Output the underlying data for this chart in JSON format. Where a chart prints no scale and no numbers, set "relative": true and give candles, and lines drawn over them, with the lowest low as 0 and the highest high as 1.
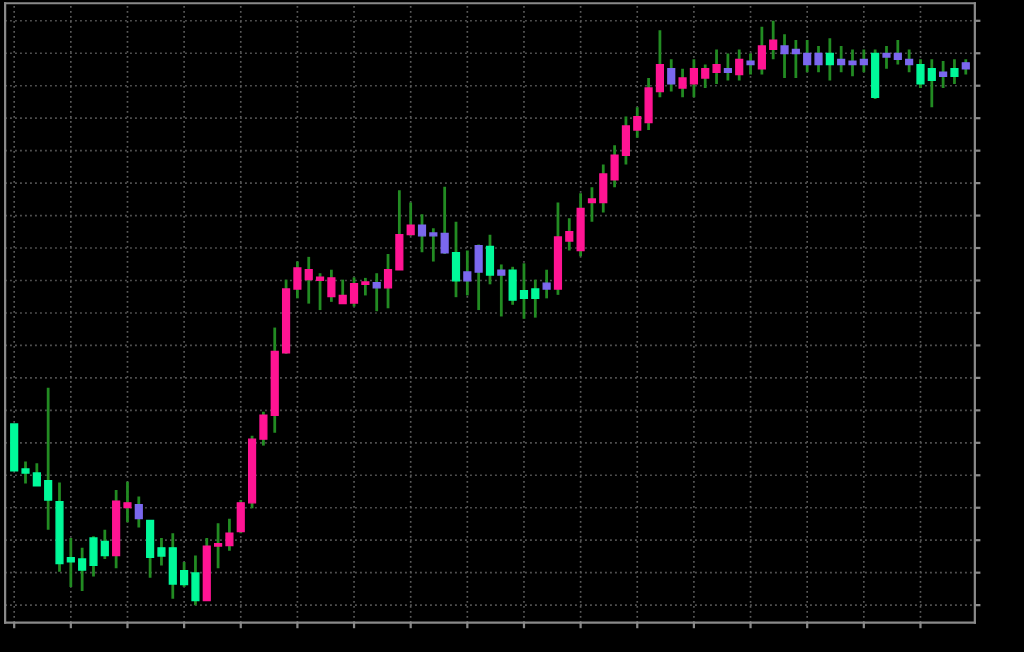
{
  "chart_data": {
    "type": "candlestick",
    "relative": true,
    "grid": true,
    "tick_labels": false,
    "categories": [
      null,
      null,
      null,
      null,
      null,
      null,
      null,
      null,
      null,
      null,
      null,
      null,
      null,
      null,
      null,
      null,
      null,
      null,
      null,
      null,
      null,
      null,
      null,
      null,
      null,
      null,
      null,
      null,
      null,
      null,
      null,
      null,
      null,
      null,
      null,
      null,
      null,
      null,
      null,
      null,
      null,
      null,
      null,
      null,
      null,
      null,
      null,
      null,
      null,
      null,
      null,
      null,
      null,
      null,
      null,
      null,
      null,
      null,
      null,
      null,
      null,
      null,
      null,
      null,
      null,
      null,
      null,
      null,
      null,
      null,
      null,
      null,
      null,
      null,
      null,
      null,
      null,
      null,
      null,
      null,
      null,
      null,
      null,
      null,
      null
    ],
    "ohlc": [
      [
        0.31,
        0.31,
        0.23,
        0.23
      ],
      [
        0.233,
        0.246,
        0.208,
        0.226
      ],
      [
        0.226,
        0.243,
        0.204,
        0.204
      ],
      [
        0.213,
        0.372,
        0.129,
        0.18
      ],
      [
        0.177,
        0.21,
        0.057,
        0.071
      ],
      [
        0.081,
        0.115,
        0.031,
        0.074
      ],
      [
        0.079,
        0.098,
        0.024,
        0.06
      ],
      [
        0.115,
        0.118,
        0.049,
        0.068
      ],
      [
        0.109,
        0.129,
        0.079,
        0.085
      ],
      [
        0.085,
        0.197,
        0.063,
        0.178
      ],
      [
        0.167,
        0.211,
        0.142,
        0.175
      ],
      [
        0.172,
        0.186,
        0.133,
        0.148
      ],
      [
        0.145,
        0.145,
        0.047,
        0.082
      ],
      [
        0.098,
        0.115,
        0.068,
        0.084
      ],
      [
        0.098,
        0.123,
        0.011,
        0.036
      ],
      [
        0.059,
        0.074,
        0.031,
        0.035
      ],
      [
        0.055,
        0.085,
        0,
        0.008
      ],
      [
        0.008,
        0.115,
        0.008,
        0.101
      ],
      [
        0.101,
        0.14,
        0.063,
        0.105
      ],
      [
        0.102,
        0.148,
        0.093,
        0.123
      ],
      [
        0.126,
        0.18,
        0.123,
        0.175
      ],
      [
        0.175,
        0.29,
        0.166,
        0.284
      ],
      [
        0.284,
        0.331,
        0.273,
        0.325
      ],
      [
        0.325,
        0.475,
        0.295,
        0.434
      ],
      [
        0.432,
        0.557,
        0.43,
        0.541
      ],
      [
        0.541,
        0.588,
        0.525,
        0.577
      ],
      [
        0.557,
        0.596,
        0.516,
        0.574
      ],
      [
        0.556,
        0.568,
        0.505,
        0.561
      ],
      [
        0.528,
        0.574,
        0.519,
        0.56
      ],
      [
        0.516,
        0.557,
        0.516,
        0.53
      ],
      [
        0.517,
        0.561,
        0.511,
        0.55
      ],
      [
        0.549,
        0.56,
        0.53,
        0.552
      ],
      [
        0.552,
        0.568,
        0.503,
        0.543
      ],
      [
        0.543,
        0.601,
        0.508,
        0.574
      ],
      [
        0.574,
        0.71,
        0.574,
        0.634
      ],
      [
        0.634,
        0.689,
        0.632,
        0.65
      ],
      [
        0.65,
        0.669,
        0.604,
        0.632
      ],
      [
        0.637,
        0.645,
        0.588,
        0.632
      ],
      [
        0.636,
        0.716,
        0.601,
        0.603
      ],
      [
        0.603,
        0.656,
        0.527,
        0.555
      ],
      [
        0.57,
        0.607,
        0.53,
        0.555
      ],
      [
        0.615,
        0.617,
        0.505,
        0.57
      ],
      [
        0.614,
        0.634,
        0.549,
        0.565
      ],
      [
        0.573,
        0.583,
        0.494,
        0.565
      ],
      [
        0.573,
        0.579,
        0.514,
        0.522
      ],
      [
        0.538,
        0.585,
        0.49,
        0.525
      ],
      [
        0.541,
        0.557,
        0.492,
        0.525
      ],
      [
        0.541,
        0.574,
        0.525,
        0.551
      ],
      [
        0.541,
        0.689,
        0.531,
        0.63
      ],
      [
        0.623,
        0.662,
        0.607,
        0.639
      ],
      [
        0.607,
        0.705,
        0.597,
        0.679
      ],
      [
        0.689,
        0.715,
        0.656,
        0.695
      ],
      [
        0.689,
        0.754,
        0.672,
        0.738
      ],
      [
        0.728,
        0.787,
        0.715,
        0.77
      ],
      [
        0.77,
        0.836,
        0.754,
        0.82
      ],
      [
        0.813,
        0.852,
        0.8,
        0.836
      ],
      [
        0.826,
        0.902,
        0.813,
        0.885
      ],
      [
        0.879,
        0.984,
        0.869,
        0.925
      ],
      [
        0.918,
        0.934,
        0.879,
        0.892
      ],
      [
        0.885,
        0.918,
        0.869,
        0.902
      ],
      [
        0.892,
        0.934,
        0.869,
        0.918
      ],
      [
        0.902,
        0.925,
        0.885,
        0.918
      ],
      [
        0.912,
        0.951,
        0.892,
        0.925
      ],
      [
        0.918,
        0.944,
        0.898,
        0.912
      ],
      [
        0.908,
        0.951,
        0.898,
        0.934
      ],
      [
        0.925,
        0.944,
        0.908,
        0.931
      ],
      [
        0.918,
        0.99,
        0.908,
        0.957
      ],
      [
        0.951,
        1,
        0.934,
        0.967
      ],
      [
        0.957,
        0.977,
        0.902,
        0.944
      ],
      [
        0.944,
        0.967,
        0.902,
        0.951
      ],
      [
        0.944,
        0.967,
        0.912,
        0.925
      ],
      [
        0.925,
        0.957,
        0.912,
        0.944
      ],
      [
        0.944,
        0.97,
        0.898,
        0.925
      ],
      [
        0.925,
        0.957,
        0.912,
        0.934
      ],
      [
        0.931,
        0.951,
        0.905,
        0.925
      ],
      [
        0.925,
        0.951,
        0.912,
        0.934
      ],
      [
        0.944,
        0.951,
        0.866,
        0.869
      ],
      [
        0.938,
        0.957,
        0.918,
        0.944
      ],
      [
        0.944,
        0.967,
        0.925,
        0.934
      ],
      [
        0.934,
        0.951,
        0.912,
        0.925
      ],
      [
        0.925,
        0.934,
        0.885,
        0.892
      ],
      [
        0.918,
        0.934,
        0.852,
        0.898
      ],
      [
        0.905,
        0.931,
        0.885,
        0.912
      ],
      [
        0.918,
        0.934,
        0.892,
        0.905
      ],
      [
        0.918,
        0.934,
        0.908,
        0.928
      ]
    ],
    "colors": [
      "#00fa9a",
      "#00fa9a",
      "#00fa9a",
      "#00fa9a",
      "#00fa9a",
      "#00fa9a",
      "#00fa9a",
      "#00fa9a",
      "#00fa9a",
      "#ff1493",
      "#ff1493",
      "#7b68ee",
      "#00fa9a",
      "#00fa9a",
      "#00fa9a",
      "#00fa9a",
      "#00fa9a",
      "#ff1493",
      "#ff1493",
      "#ff1493",
      "#ff1493",
      "#ff1493",
      "#ff1493",
      "#ff1493",
      "#ff1493",
      "#ff1493",
      "#ff1493",
      "#ff1493",
      "#ff1493",
      "#ff1493",
      "#ff1493",
      "#ff1493",
      "#7b68ee",
      "#ff1493",
      "#ff1493",
      "#ff1493",
      "#7b68ee",
      "#7b68ee",
      "#7b68ee",
      "#00fa9a",
      "#7b68ee",
      "#7b68ee",
      "#00fa9a",
      "#7b68ee",
      "#00fa9a",
      "#00fa9a",
      "#00fa9a",
      "#7b68ee",
      "#ff1493",
      "#ff1493",
      "#ff1493",
      "#ff1493",
      "#ff1493",
      "#ff1493",
      "#ff1493",
      "#ff1493",
      "#ff1493",
      "#ff1493",
      "#7b68ee",
      "#ff1493",
      "#ff1493",
      "#ff1493",
      "#ff1493",
      "#7b68ee",
      "#ff1493",
      "#7b68ee",
      "#ff1493",
      "#ff1493",
      "#7b68ee",
      "#7b68ee",
      "#7b68ee",
      "#7b68ee",
      "#00fa9a",
      "#7b68ee",
      "#7b68ee",
      "#7b68ee",
      "#00fa9a",
      "#7b68ee",
      "#7b68ee",
      "#7b68ee",
      "#00fa9a",
      "#00fa9a",
      "#7b68ee",
      "#00fa9a",
      "#7b68ee"
    ]
  }
}
